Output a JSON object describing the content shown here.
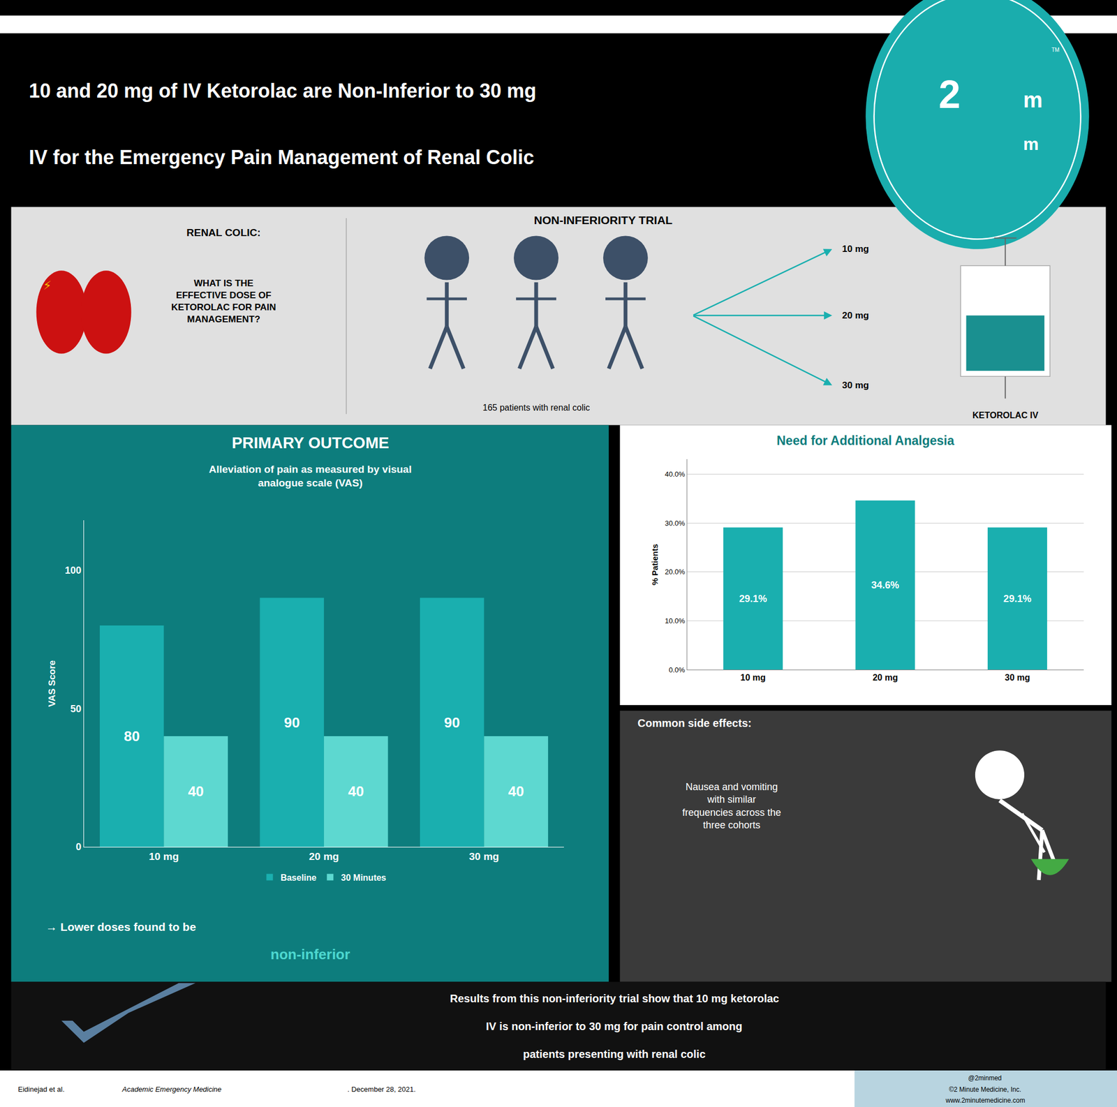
{
  "chart_data": [
    {
      "type": "bar",
      "title": "PRIMARY OUTCOME",
      "subtitle": "Alleviation of pain as measured by visual\nanalogue scale (VAS)",
      "categories": [
        "10 mg",
        "20 mg",
        "30 mg"
      ],
      "series": [
        {
          "name": "Baseline",
          "color": "#1aafaf",
          "values": [
            80,
            90,
            90
          ]
        },
        {
          "name": "30 Minutes",
          "color": "#5dd8d0",
          "values": [
            40,
            40,
            40
          ]
        }
      ],
      "ylabel": "VAS Score",
      "ylim": [
        0,
        118
      ],
      "yticks": [
        0,
        50,
        100
      ],
      "grid": false,
      "legend": "bottom",
      "data_labels": true,
      "annotations": [
        "10 and 20 mg of IV Ketorolac are Non-Inferior to 30 mg",
        "IV for the Emergency Pain Management of Renal Colic",
        "2",
        "m",
        "m",
        "TM",
        "⚡",
        "RENAL COLIC:",
        "WHAT IS THE\nEFFECTIVE DOSE OF\nKETOROLAC FOR PAIN\nMANAGEMENT?",
        "NON-INFERIORITY TRIAL",
        "165 patients with renal colic",
        "10 mg",
        "20 mg",
        "30 mg",
        "KETOROLAC IV",
        "→ Lower doses found to be",
        "non-inferior"
      ]
    },
    {
      "type": "bar",
      "title": "Need for Additional Analgesia",
      "categories": [
        "10 mg",
        "20 mg",
        "30 mg"
      ],
      "values": [
        29.1,
        34.6,
        29.1
      ],
      "value_labels": [
        "29.1%",
        "34.6%",
        "29.1%"
      ],
      "color": "#1aafaf",
      "ylabel": "% Patients",
      "ylim": [
        0,
        43
      ],
      "yticks": [
        {
          "value": 0,
          "label": "0.0%"
        },
        {
          "value": 10,
          "label": "10.0%"
        },
        {
          "value": 20,
          "label": "20.0%"
        },
        {
          "value": 30,
          "label": "30.0%"
        },
        {
          "value": 40,
          "label": "40.0%"
        }
      ],
      "grid": true,
      "data_labels": true,
      "annotations": [
        "Common side effects:",
        "Nausea and vomiting\nwith similar\nfrequencies across the\nthree cohorts",
        "Results from this non-inferiority trial show that 10 mg ketorolac",
        "IV is non-inferior to 30 mg for pain control among",
        "patients presenting with renal colic",
        "Eidinejad et al. ",
        "Academic Emergency Medicine",
        ". December 28, 2021.",
        "@2minmed",
        "©2 Minute Medicine, Inc.",
        "www.2minutemedicine.com"
      ]
    }
  ]
}
